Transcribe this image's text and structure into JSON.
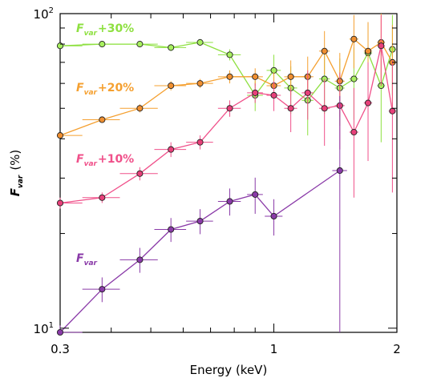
{
  "chart_data": {
    "type": "line",
    "xlabel": "Energy (keV)",
    "ylabel_main": "F",
    "ylabel_sub": "var",
    "ylabel_unit": "(%)",
    "xscale": "log",
    "yscale": "log",
    "xlim": [
      0.3,
      2.0
    ],
    "ylim": [
      9.7,
      100
    ],
    "x_tick_labels": [
      "0.3",
      "1",
      "2"
    ],
    "y_tick_labels": [
      {
        "base": "10",
        "exp": "1"
      },
      {
        "base": "10",
        "exp": "2"
      }
    ],
    "series": [
      {
        "name_main": "F",
        "name_sub": "var",
        "name_suffix": "+30%",
        "color": "#8ee040",
        "marker_fill": "#a8f060",
        "x": [
          0.3,
          0.38,
          0.47,
          0.56,
          0.66,
          0.78,
          0.9,
          1.0,
          1.1,
          1.21,
          1.33,
          1.45,
          1.57,
          1.7,
          1.83,
          1.95
        ],
        "y": [
          79,
          80,
          80,
          78,
          81,
          74,
          55,
          66,
          58,
          53,
          62,
          58,
          62,
          75,
          59,
          77
        ],
        "xerr": [
          0.04,
          0.04,
          0.05,
          0.05,
          0.05,
          0.05,
          0.04,
          0.04,
          0.04,
          0.04,
          0.04,
          0.04,
          0.04,
          0.04,
          0.04,
          0.04
        ],
        "yerr": [
          1.5,
          1.5,
          1.5,
          2,
          2,
          3,
          6,
          8,
          10,
          12,
          14,
          14,
          16,
          18,
          20,
          22
        ]
      },
      {
        "name_main": "F",
        "name_sub": "var",
        "name_suffix": "+20%",
        "color": "#f5a030",
        "marker_fill": "#f08f30",
        "x": [
          0.3,
          0.38,
          0.47,
          0.56,
          0.66,
          0.78,
          0.9,
          1.0,
          1.1,
          1.21,
          1.33,
          1.45,
          1.57,
          1.7,
          1.83,
          1.95
        ],
        "y": [
          41,
          46,
          50,
          59,
          60,
          63,
          63,
          59,
          63,
          63,
          76,
          61,
          83,
          76,
          81,
          70
        ],
        "xerr": [
          0.04,
          0.04,
          0.05,
          0.05,
          0.05,
          0.05,
          0.04,
          0.04,
          0.04,
          0.04,
          0.04,
          0.04,
          0.04,
          0.04,
          0.04,
          0.04
        ],
        "yerr": [
          1,
          1,
          1.5,
          2,
          2,
          3,
          4,
          6,
          8,
          10,
          12,
          14,
          16,
          18,
          20,
          22
        ]
      },
      {
        "name_main": "F",
        "name_sub": "var",
        "name_suffix": "+10%",
        "color": "#f0508a",
        "marker_fill": "#e8407a",
        "x": [
          0.3,
          0.38,
          0.47,
          0.56,
          0.66,
          0.78,
          0.9,
          1.0,
          1.1,
          1.21,
          1.33,
          1.45,
          1.57,
          1.7,
          1.83,
          1.95
        ],
        "y": [
          25,
          26,
          31,
          37,
          39,
          50,
          56,
          55,
          50,
          56,
          50,
          51,
          42,
          52,
          79,
          49
        ],
        "xerr": [
          0.04,
          0.04,
          0.05,
          0.05,
          0.05,
          0.05,
          0.04,
          0.04,
          0.04,
          0.04,
          0.04,
          0.04,
          0.04,
          0.04,
          0.04,
          0.04
        ],
        "yerr": [
          1,
          1,
          1.5,
          2,
          2,
          3,
          4,
          6,
          8,
          10,
          12,
          14,
          16,
          18,
          20,
          22
        ]
      },
      {
        "name_main": "F",
        "name_sub": "var",
        "name_suffix": "",
        "color": "#8a3aa8",
        "marker_fill": "#8a3aa8",
        "x": [
          0.3,
          0.38,
          0.47,
          0.56,
          0.66,
          0.78,
          0.9,
          1.0,
          1.45
        ],
        "y": [
          9.7,
          13.3,
          16.5,
          20.6,
          21.9,
          25.3,
          26.6,
          22.7,
          31.7
        ],
        "xerr": [
          0.04,
          0.04,
          0.05,
          0.05,
          0.05,
          0.05,
          0.04,
          0.05,
          0.06
        ],
        "yerr": [
          0.5,
          1.2,
          1.5,
          1.8,
          2,
          2.5,
          3.5,
          3,
          23
        ]
      }
    ]
  }
}
